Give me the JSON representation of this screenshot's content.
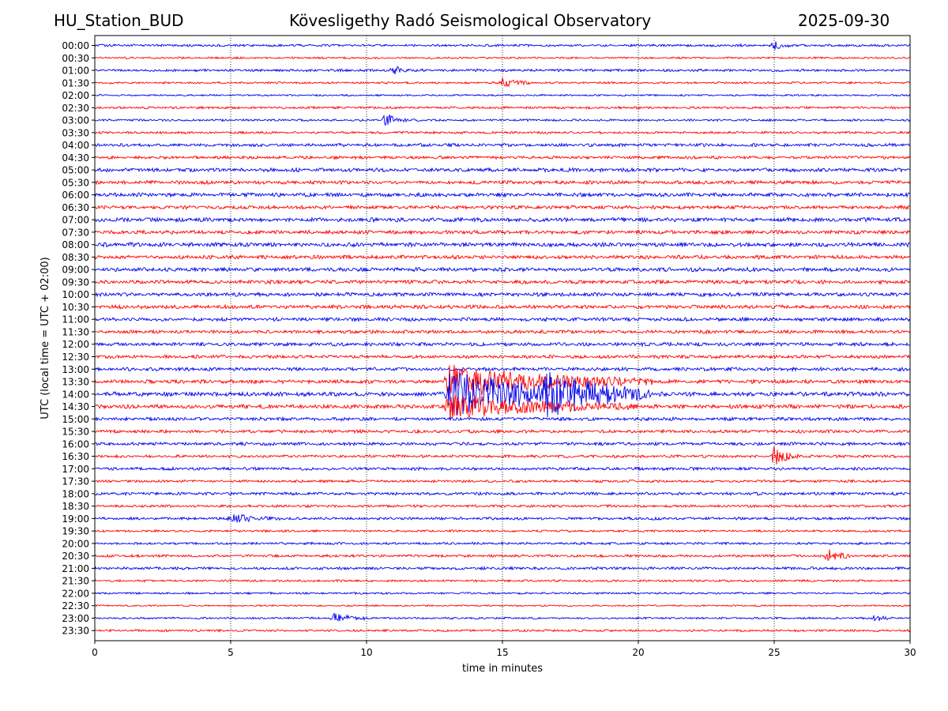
{
  "header": {
    "station": "HU_Station_BUD",
    "title": "Köveslig­ethy Radó Seismological Observatory",
    "date": "2025-09-30"
  },
  "chart_data": {
    "type": "line",
    "title": "Kövesligethy Radó Seismological Observatory",
    "xlabel": "time in minutes",
    "ylabel": "UTC (local time = UTC + 02:00)",
    "xlim": [
      0,
      30
    ],
    "x_ticks": [
      0,
      5,
      10,
      15,
      20,
      25,
      30
    ],
    "vertical_grid_at": [
      5,
      10,
      15,
      20,
      25
    ],
    "series_colors": [
      "#0000ee",
      "#ff0000"
    ],
    "row_labels": [
      "00:00",
      "00:30",
      "01:00",
      "01:30",
      "02:00",
      "02:30",
      "03:00",
      "03:30",
      "04:00",
      "04:30",
      "05:00",
      "05:30",
      "06:00",
      "06:30",
      "07:00",
      "07:30",
      "08:00",
      "08:30",
      "09:00",
      "09:30",
      "10:00",
      "10:30",
      "11:00",
      "11:30",
      "12:00",
      "12:30",
      "13:00",
      "13:30",
      "14:00",
      "14:30",
      "15:00",
      "15:30",
      "16:00",
      "16:30",
      "17:00",
      "17:30",
      "18:00",
      "18:30",
      "19:00",
      "19:30",
      "20:00",
      "20:30",
      "21:00",
      "21:30",
      "22:00",
      "22:30",
      "23:00",
      "23:30"
    ],
    "baseline_amplitude": [
      1.2,
      1.0,
      1.3,
      1.0,
      0.9,
      1.2,
      1.1,
      1.2,
      1.6,
      1.5,
      1.9,
      1.8,
      2.0,
      1.8,
      2.1,
      1.9,
      2.1,
      1.9,
      2.0,
      1.9,
      1.9,
      1.9,
      1.8,
      1.7,
      1.8,
      1.7,
      1.8,
      1.9,
      2.2,
      2.0,
      1.7,
      1.6,
      1.6,
      1.4,
      1.5,
      1.3,
      1.5,
      1.3,
      1.4,
      1.1,
      1.2,
      1.3,
      1.4,
      1.1,
      1.0,
      0.8,
      1.0,
      1.1
    ],
    "events": [
      {
        "row": 0,
        "minute": 25.0,
        "amplitude": 5,
        "duration": 0.8
      },
      {
        "row": 2,
        "minute": 11.0,
        "amplitude": 6,
        "duration": 0.6
      },
      {
        "row": 3,
        "minute": 15.0,
        "amplitude": 6,
        "duration": 1.0
      },
      {
        "row": 6,
        "minute": 10.7,
        "amplitude": 9,
        "duration": 0.8
      },
      {
        "row": 27,
        "minute": 13.0,
        "amplitude": 22,
        "duration": 7.5
      },
      {
        "row": 28,
        "minute": 13.0,
        "amplitude": 30,
        "duration": 7.5
      },
      {
        "row": 29,
        "minute": 13.0,
        "amplitude": 16,
        "duration": 7.0
      },
      {
        "row": 28,
        "minute": 16.6,
        "amplitude": 22,
        "duration": 3.5
      },
      {
        "row": 33,
        "minute": 25.0,
        "amplitude": 11,
        "duration": 1.0
      },
      {
        "row": 38,
        "minute": 5.0,
        "amplitude": 5,
        "duration": 2.0
      },
      {
        "row": 41,
        "minute": 27.0,
        "amplitude": 9,
        "duration": 0.8
      },
      {
        "row": 46,
        "minute": 8.8,
        "amplitude": 5,
        "duration": 1.5
      },
      {
        "row": 46,
        "minute": 28.7,
        "amplitude": 5,
        "duration": 0.5
      }
    ]
  }
}
